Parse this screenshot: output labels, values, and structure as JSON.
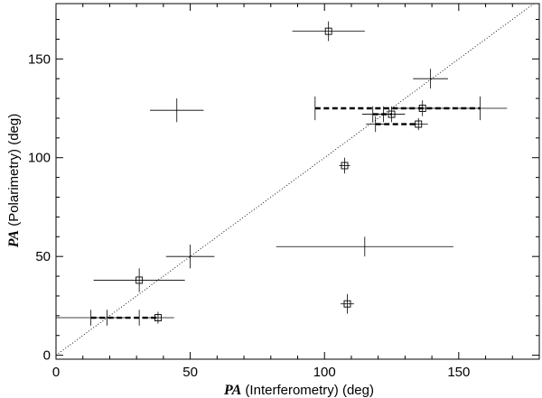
{
  "chart_data": {
    "type": "scatter",
    "xlabel_symbol": "PA",
    "xlabel_text": " (Interferometry) (deg)",
    "ylabel_symbol": "PA",
    "ylabel_text": " (Polarimetry) (deg)",
    "xlim": [
      0,
      180
    ],
    "ylim": [
      -2,
      178
    ],
    "xticks": [
      0,
      50,
      100,
      150
    ],
    "yticks": [
      0,
      50,
      100,
      150
    ],
    "grid": false,
    "reference_line": {
      "style": "dotted",
      "from": [
        0,
        0
      ],
      "to": [
        178,
        178
      ]
    },
    "points": [
      {
        "x": 101.5,
        "y": 164,
        "xerr": 13.5,
        "yerr": 5,
        "marker": "square"
      },
      {
        "x": 139.5,
        "y": 140,
        "xerr": 6.5,
        "yerr": 5,
        "marker": "none"
      },
      {
        "x": 45,
        "y": 124,
        "xerr": 10,
        "yerr": 6,
        "marker": "none"
      },
      {
        "x": 136.5,
        "y": 125,
        "xerr": 10.5,
        "yerr": 4,
        "marker": "square"
      },
      {
        "x": 96.5,
        "y": 125,
        "xerr": 0,
        "yerr": 6,
        "marker": "none"
      },
      {
        "x": 158,
        "y": 125,
        "xerr": 10,
        "yerr": 6,
        "marker": "none"
      },
      {
        "x": 125,
        "y": 122,
        "xerr": 5,
        "yerr": 4,
        "marker": "square"
      },
      {
        "x": 118,
        "y": 122,
        "xerr": 4,
        "yerr": 4,
        "marker": "none"
      },
      {
        "x": 122,
        "y": 122,
        "xerr": 0,
        "yerr": 4,
        "marker": "none"
      },
      {
        "x": 135,
        "y": 117,
        "xerr": 3.5,
        "yerr": 3,
        "marker": "square"
      },
      {
        "x": 119,
        "y": 117,
        "xerr": 3.5,
        "yerr": 4,
        "marker": "none"
      },
      {
        "x": 107.5,
        "y": 96,
        "xerr": 2,
        "yerr": 4,
        "marker": "square"
      },
      {
        "x": 115,
        "y": 55,
        "xerr": 33,
        "yerr": 5,
        "marker": "none"
      },
      {
        "x": 50,
        "y": 50,
        "xerr": 9,
        "yerr": 6,
        "marker": "none"
      },
      {
        "x": 31,
        "y": 38,
        "xerr": 17,
        "yerr": 6,
        "marker": "square"
      },
      {
        "x": 38,
        "y": 19,
        "xerr": 6,
        "yerr": 3,
        "marker": "square"
      },
      {
        "x": 13,
        "y": 19,
        "xerr": 13,
        "yerr": 4,
        "marker": "none"
      },
      {
        "x": 19,
        "y": 19,
        "xerr": 0,
        "yerr": 4,
        "marker": "none"
      },
      {
        "x": 31,
        "y": 19,
        "xerr": 0,
        "yerr": 4,
        "marker": "none"
      },
      {
        "x": 108.5,
        "y": 26,
        "xerr": 2.5,
        "yerr": 5,
        "marker": "square"
      }
    ],
    "dashed_links": [
      {
        "x0": 96.5,
        "x1": 158,
        "y": 125
      },
      {
        "x0": 118,
        "x1": 125,
        "y": 122
      },
      {
        "x0": 119,
        "x1": 135,
        "y": 117
      },
      {
        "x0": 13,
        "x1": 38,
        "y": 19
      }
    ]
  }
}
